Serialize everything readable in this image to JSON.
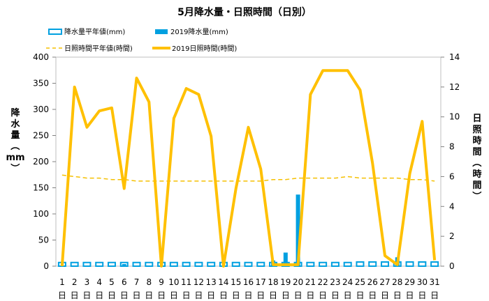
{
  "chart_data": {
    "type": "bar",
    "title": "5月降水量・日照時間（日別）",
    "categories": [
      "1",
      "2",
      "3",
      "4",
      "5",
      "6",
      "7",
      "8",
      "9",
      "10",
      "11",
      "12",
      "13",
      "14",
      "15",
      "16",
      "17",
      "18",
      "19",
      "20",
      "21",
      "22",
      "23",
      "24",
      "25",
      "26",
      "27",
      "28",
      "29",
      "30",
      "31"
    ],
    "day_suffix": "日",
    "ylabel_left": "降水量（mm）",
    "ylabel_right": "日照時間（時間）",
    "ylim_left": [
      0,
      400
    ],
    "ylim_right": [
      0,
      14
    ],
    "yticks_left": [
      "0",
      "50",
      "100",
      "150",
      "200",
      "250",
      "300",
      "350",
      "400"
    ],
    "yticks_right": [
      "0",
      "2",
      "4",
      "6",
      "8",
      "10",
      "12",
      "14"
    ],
    "series": [
      {
        "name": "降水量平年値(mm)",
        "kind": "bar-outline",
        "axis": "left",
        "color": "#00a0e0",
        "values": [
          7,
          7,
          7,
          7,
          7,
          7,
          7,
          7,
          7,
          7,
          7,
          7,
          7,
          7,
          7,
          7,
          7,
          7,
          7,
          7,
          7,
          7,
          7,
          7,
          8,
          8,
          8,
          8,
          8,
          8,
          8
        ]
      },
      {
        "name": "2019降水量(mm)",
        "kind": "bar",
        "axis": "left",
        "color": "#00a0e0",
        "values": [
          0,
          0,
          0,
          0,
          0,
          4,
          0,
          0,
          0,
          0,
          0,
          0,
          0,
          0,
          0,
          0,
          0,
          11,
          26,
          137,
          0,
          0,
          0,
          0,
          0,
          0,
          0,
          17,
          0,
          0,
          0
        ]
      },
      {
        "name": "日照時間平年値(時間)",
        "kind": "line-dashed",
        "axis": "right",
        "color": "#f5c000",
        "values": [
          6.1,
          6.0,
          5.9,
          5.9,
          5.8,
          5.8,
          5.7,
          5.7,
          5.7,
          5.7,
          5.7,
          5.7,
          5.7,
          5.7,
          5.7,
          5.7,
          5.7,
          5.8,
          5.8,
          5.9,
          5.9,
          5.9,
          5.9,
          6.0,
          5.9,
          5.9,
          5.9,
          5.9,
          5.8,
          5.8,
          5.7
        ]
      },
      {
        "name": "2019日照時間(時間)",
        "kind": "line",
        "axis": "right",
        "color": "#ffc000",
        "values": [
          0.0,
          12.0,
          9.3,
          10.4,
          10.6,
          5.2,
          12.6,
          11.0,
          0.0,
          9.9,
          11.9,
          11.5,
          8.7,
          0.0,
          5.2,
          9.3,
          6.5,
          0.1,
          0.1,
          0.1,
          11.5,
          13.1,
          13.1,
          13.1,
          11.8,
          6.9,
          0.7,
          0.1,
          6.2,
          9.7,
          0.4
        ]
      }
    ]
  }
}
